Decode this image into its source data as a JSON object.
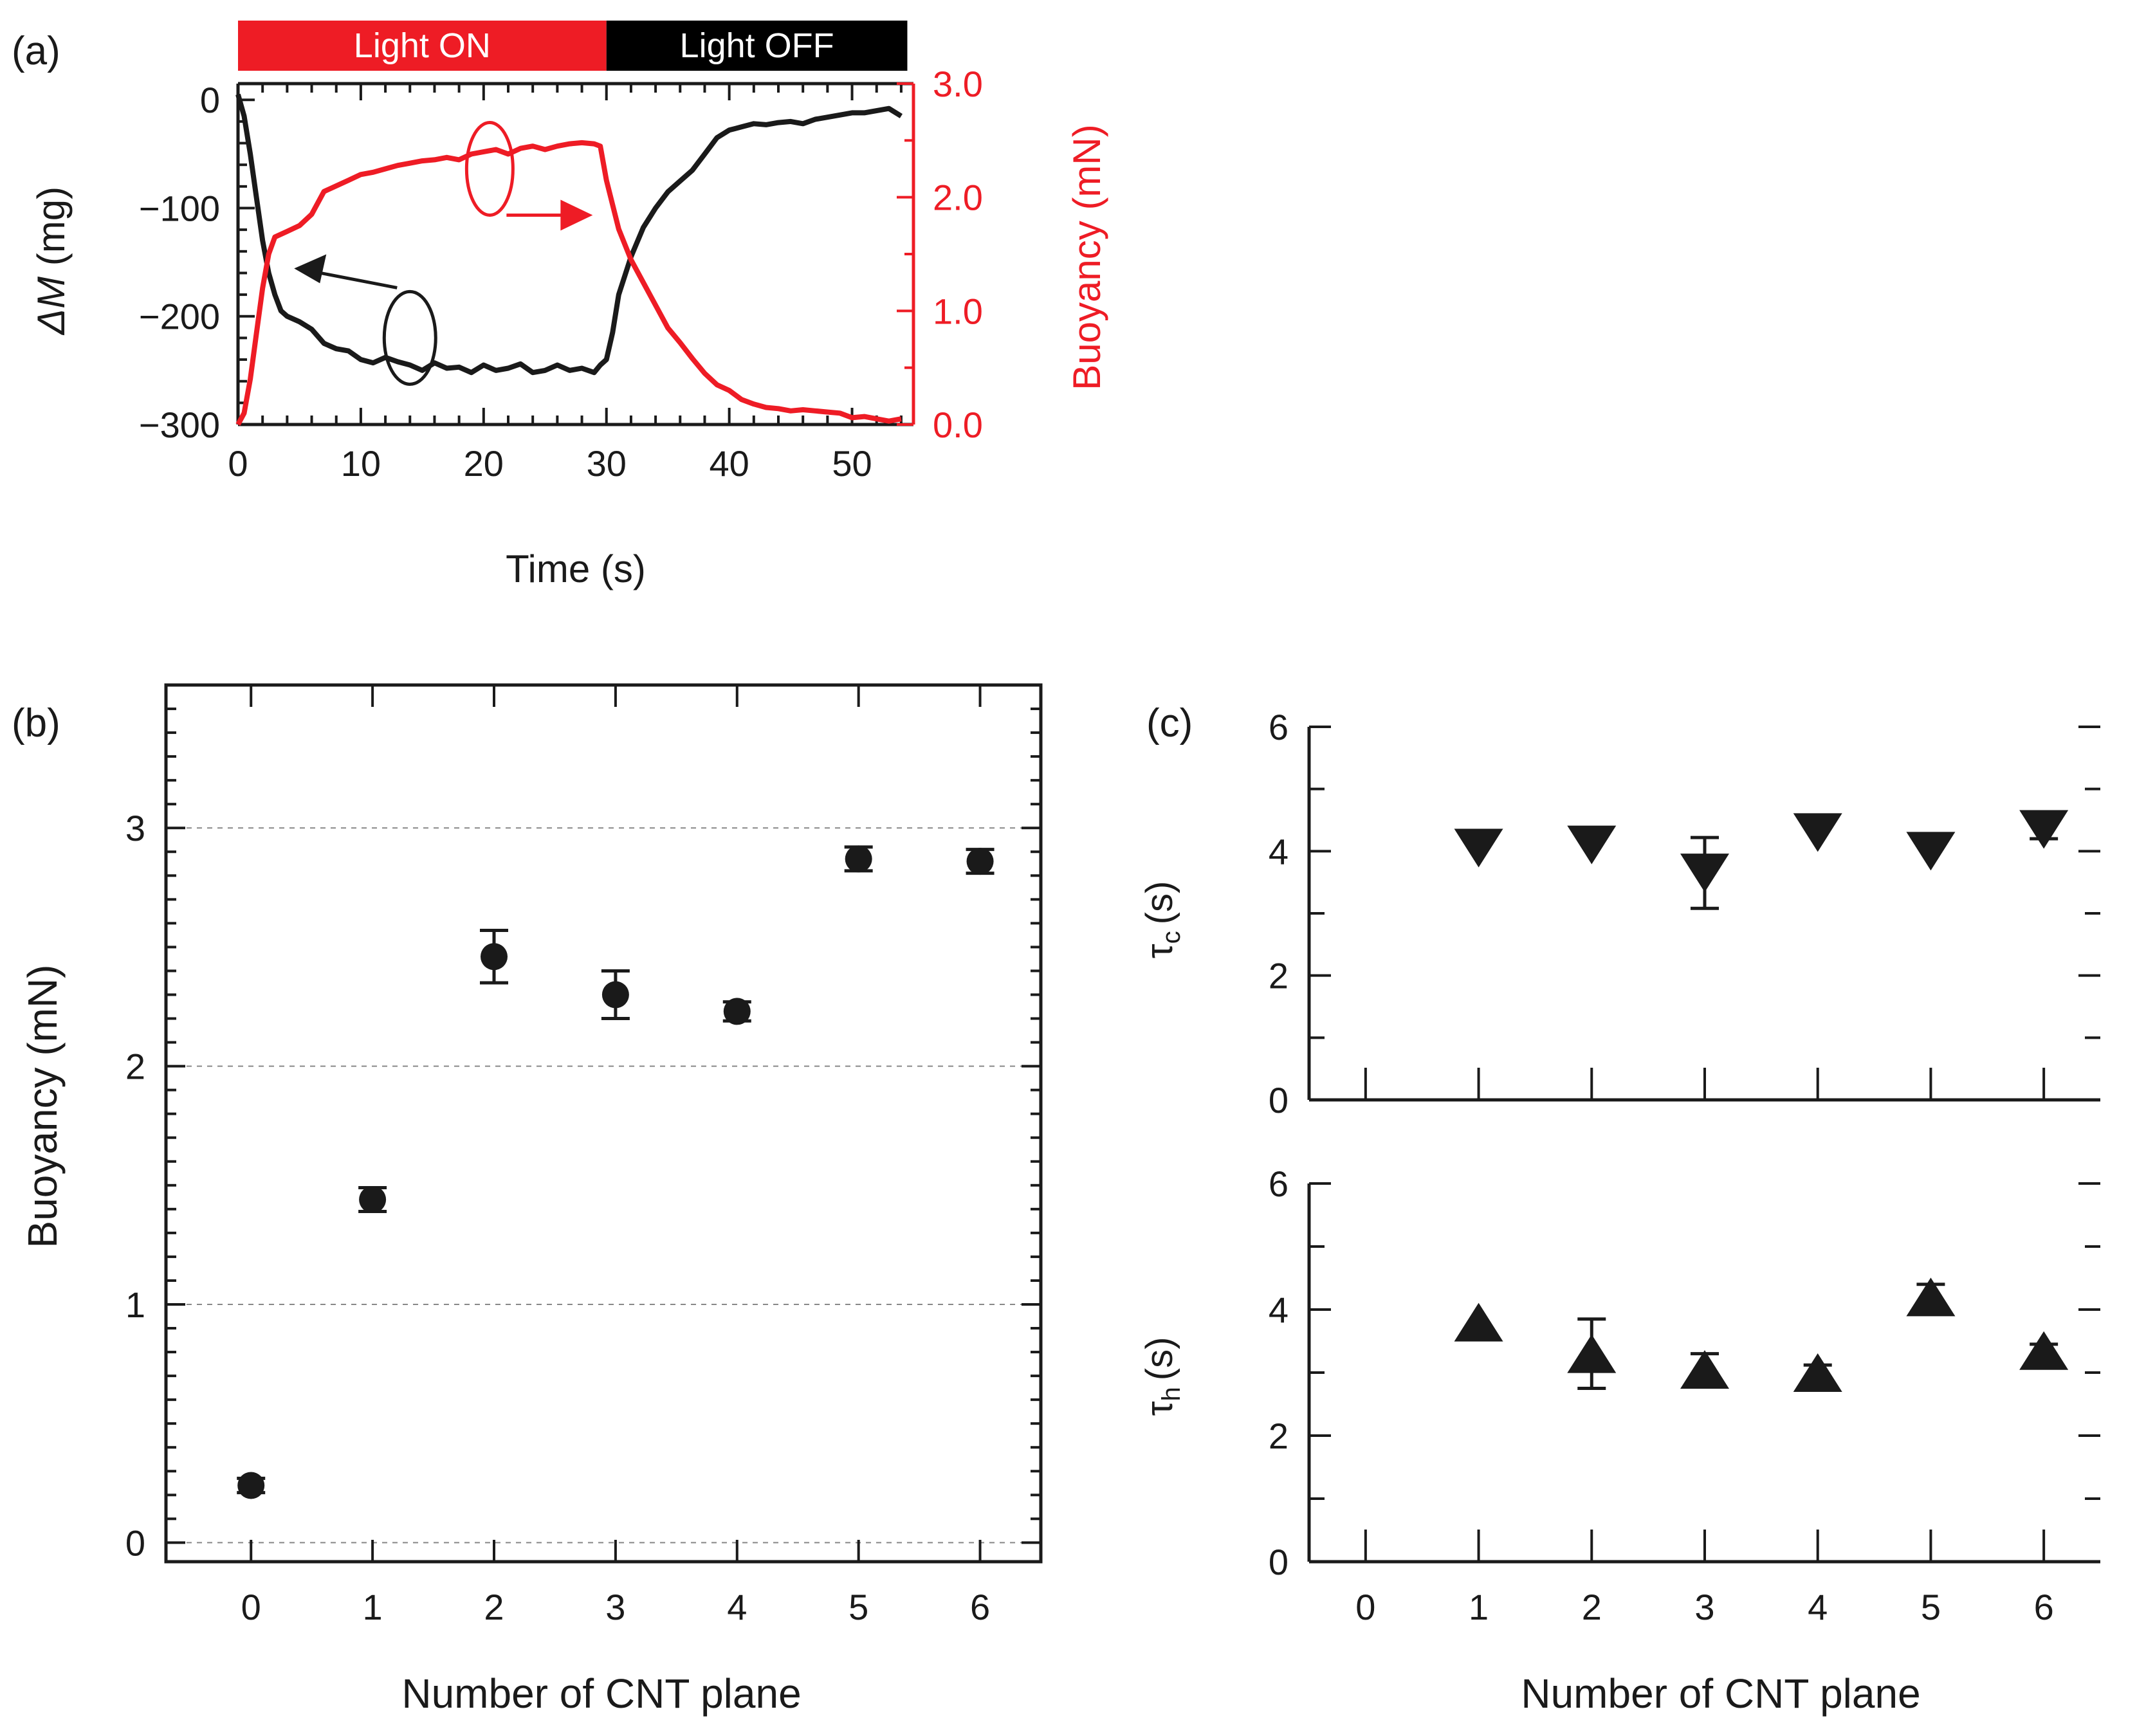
{
  "colors": {
    "black": "#1a1a1a",
    "red": "#ee1c25",
    "grid": "#888888"
  },
  "chart_data": [
    {
      "id": "a",
      "panel_label": "(a)",
      "type": "line",
      "title": "",
      "xlabel": "Time (s)",
      "ylabel_italic": "ΔM",
      "ylabel_rest": " (mg)",
      "y2label": "Buoyancy (mN)",
      "xlim": [
        0,
        55
      ],
      "ylim": [
        -300,
        15
      ],
      "y2lim": [
        0,
        3.0
      ],
      "xticks": [
        0,
        10,
        20,
        30,
        40,
        50
      ],
      "xtick_labels": [
        "0",
        "10",
        "20",
        "30",
        "40",
        "50"
      ],
      "yticks": [
        0,
        -100,
        -200,
        -300
      ],
      "ytick_labels": [
        "0",
        "−100",
        "−200",
        "−300"
      ],
      "y2ticks": [
        3.0,
        2.0,
        1.0,
        0.0
      ],
      "y2tick_labels": [
        "3.0",
        "2.0",
        "1.0",
        "0.0"
      ],
      "light_bar": [
        {
          "label": "Light ON",
          "start": 0,
          "end": 30,
          "color": "#ee1c25"
        },
        {
          "label": "Light OFF",
          "start": 30,
          "end": 54.5,
          "color": "#000000"
        }
      ],
      "series": [
        {
          "name": "ΔM (mg)",
          "axis": "left",
          "color": "#1a1a1a",
          "x": [
            0,
            0.5,
            1,
            1.5,
            2,
            2.5,
            3,
            3.5,
            4,
            5,
            6,
            7,
            8,
            9,
            10,
            11,
            12,
            13,
            14,
            15,
            16,
            17,
            18,
            19,
            20,
            21,
            22,
            23,
            24,
            25,
            26,
            27,
            28,
            29,
            29.5,
            30,
            30.5,
            31,
            32,
            33,
            34,
            35,
            36,
            37,
            38,
            39,
            40,
            41,
            42,
            43,
            44,
            45,
            46,
            47,
            48,
            49,
            50,
            51,
            52,
            53,
            54
          ],
          "y": [
            5,
            -15,
            -50,
            -90,
            -130,
            -160,
            -180,
            -195,
            -200,
            -205,
            -212,
            -225,
            -230,
            -232,
            -240,
            -243,
            -238,
            -242,
            -245,
            -250,
            -243,
            -248,
            -247,
            -252,
            -245,
            -250,
            -248,
            -244,
            -252,
            -250,
            -245,
            -250,
            -248,
            -252,
            -245,
            -240,
            -215,
            -180,
            -145,
            -118,
            -100,
            -85,
            -75,
            -65,
            -50,
            -35,
            -28,
            -25,
            -22,
            -23,
            -21,
            -20,
            -22,
            -18,
            -16,
            -14,
            -12,
            -12,
            -10,
            -8,
            -15
          ]
        },
        {
          "name": "Buoyancy (mN)",
          "axis": "right",
          "color": "#ee1c25",
          "x": [
            0,
            0.5,
            1,
            1.5,
            2,
            2.5,
            3,
            4,
            5,
            6,
            7,
            8,
            9,
            10,
            11,
            12,
            13,
            14,
            15,
            16,
            17,
            18,
            19,
            20,
            21,
            22,
            23,
            24,
            25,
            26,
            27,
            28,
            29,
            29.5,
            30,
            31,
            32,
            33,
            34,
            35,
            36,
            37,
            38,
            39,
            40,
            41,
            42,
            43,
            44,
            45,
            46,
            47,
            48,
            49,
            50,
            51,
            52,
            53,
            54
          ],
          "y": [
            0.0,
            0.1,
            0.4,
            0.8,
            1.2,
            1.5,
            1.65,
            1.7,
            1.75,
            1.85,
            2.05,
            2.1,
            2.15,
            2.2,
            2.22,
            2.25,
            2.28,
            2.3,
            2.32,
            2.33,
            2.35,
            2.33,
            2.38,
            2.4,
            2.42,
            2.38,
            2.43,
            2.45,
            2.42,
            2.45,
            2.47,
            2.48,
            2.47,
            2.45,
            2.15,
            1.72,
            1.45,
            1.25,
            1.05,
            0.85,
            0.72,
            0.58,
            0.45,
            0.35,
            0.3,
            0.22,
            0.18,
            0.15,
            0.14,
            0.12,
            0.13,
            0.12,
            0.11,
            0.1,
            0.06,
            0.07,
            0.05,
            0.03,
            0.05
          ]
        }
      ],
      "annotations": [
        {
          "type": "ellipse-arrow",
          "series": "ΔM (mg)",
          "points_to": "left axis",
          "at": [
            14,
            -220
          ]
        },
        {
          "type": "ellipse-arrow",
          "series": "Buoyancy (mN)",
          "points_to": "right axis",
          "at": [
            20.5,
            2.25
          ]
        }
      ]
    },
    {
      "id": "b",
      "panel_label": "(b)",
      "type": "scatter",
      "title": "",
      "xlabel": "Number of CNT plane",
      "ylabel": "Buoyancy (mN)",
      "xlim": [
        -0.7,
        6.5
      ],
      "ylim": [
        -0.08,
        3.6
      ],
      "xticks": [
        0,
        1,
        2,
        3,
        4,
        5,
        6
      ],
      "xtick_labels": [
        "0",
        "1",
        "2",
        "3",
        "4",
        "5",
        "6"
      ],
      "yticks": [
        0,
        1,
        2,
        3
      ],
      "ytick_labels": [
        "0",
        "1",
        "2",
        "3"
      ],
      "grid": "horizontal dashed at 0, 1, 2, 3",
      "marker": "circle",
      "x": [
        0,
        1,
        2,
        3,
        4,
        5,
        6
      ],
      "y": [
        0.24,
        1.44,
        2.46,
        2.3,
        2.23,
        2.87,
        2.86
      ],
      "err": [
        0.03,
        0.05,
        0.11,
        0.1,
        0.04,
        0.05,
        0.05
      ]
    },
    {
      "id": "c-top",
      "panel_label": "(c)",
      "type": "scatter",
      "title": "",
      "xlabel": "",
      "ylabel_base": "τ",
      "ylabel_sub": "c",
      "ylabel_rest": "(s)",
      "xlim": [
        -0.5,
        6.5
      ],
      "ylim": [
        0,
        6
      ],
      "yticks": [
        0,
        2,
        4,
        6
      ],
      "ytick_labels": [
        "0",
        "2",
        "4",
        "6"
      ],
      "marker": "triangle-down",
      "x": [
        1,
        2,
        3,
        4,
        5,
        6
      ],
      "y": [
        4.05,
        4.1,
        3.65,
        4.3,
        4.0,
        4.35
      ],
      "err": [
        0.0,
        0.0,
        0.57,
        0.0,
        0.0,
        0.15
      ]
    },
    {
      "id": "c-bottom",
      "panel_label": "",
      "type": "scatter",
      "title": "",
      "xlabel": "Number of CNT plane",
      "ylabel_base": "τ",
      "ylabel_sub": "h",
      "ylabel_rest": "(s)",
      "xlim": [
        -0.5,
        6.5
      ],
      "ylim": [
        0,
        6
      ],
      "xticks": [
        0,
        1,
        2,
        3,
        4,
        5,
        6
      ],
      "xtick_labels": [
        "0",
        "1",
        "2",
        "3",
        "4",
        "5",
        "6"
      ],
      "yticks": [
        0,
        2,
        4,
        6
      ],
      "ytick_labels": [
        "0",
        "2",
        "4",
        "6"
      ],
      "marker": "triangle-up",
      "x": [
        1,
        2,
        3,
        4,
        5,
        6
      ],
      "y": [
        3.8,
        3.3,
        3.05,
        3.0,
        4.2,
        3.35
      ],
      "err": [
        0.0,
        0.55,
        0.25,
        0.12,
        0.2,
        0.1
      ]
    }
  ]
}
